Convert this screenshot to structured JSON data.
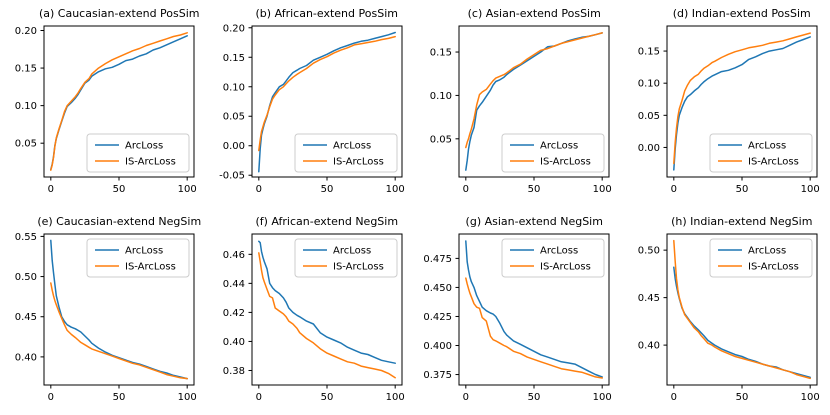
{
  "figure": {
    "description": "2x4 grid of line charts comparing ArcLoss and IS-ArcLoss similarity percentiles",
    "series_colors": {
      "ArcLoss": "#1f77b4",
      "IS-ArcLoss": "#ff7f0e"
    },
    "legend_entries": [
      "ArcLoss",
      "IS-ArcLoss"
    ]
  },
  "common_x": [
    0,
    1,
    2,
    3,
    4,
    6,
    8,
    10,
    12,
    15,
    18,
    20,
    22,
    25,
    28,
    30,
    35,
    40,
    45,
    50,
    55,
    60,
    65,
    70,
    75,
    80,
    85,
    90,
    95,
    100
  ],
  "chart_data": [
    {
      "id": "a",
      "type": "line",
      "title": "(a) Caucasian-extend PosSim",
      "xlim": [
        -5,
        105
      ],
      "ylim": [
        0.005,
        0.206
      ],
      "xticks": [
        "0",
        "50",
        "100"
      ],
      "yticks": [
        "0.05",
        "0.10",
        "0.15",
        "0.20"
      ],
      "legend_pos": "lower-right",
      "grid": false,
      "series": [
        {
          "name": "ArcLoss",
          "color": "#1f77b4",
          "values": [
            0.015,
            0.022,
            0.032,
            0.047,
            0.056,
            0.068,
            0.079,
            0.09,
            0.099,
            0.104,
            0.11,
            0.115,
            0.121,
            0.13,
            0.134,
            0.139,
            0.145,
            0.149,
            0.151,
            0.155,
            0.16,
            0.162,
            0.166,
            0.169,
            0.174,
            0.177,
            0.181,
            0.185,
            0.189,
            0.193
          ]
        },
        {
          "name": "IS-ArcLoss",
          "color": "#ff7f0e",
          "values": [
            0.014,
            0.021,
            0.031,
            0.046,
            0.057,
            0.069,
            0.08,
            0.092,
            0.1,
            0.106,
            0.112,
            0.117,
            0.123,
            0.131,
            0.136,
            0.142,
            0.15,
            0.156,
            0.161,
            0.165,
            0.169,
            0.173,
            0.176,
            0.18,
            0.183,
            0.186,
            0.189,
            0.192,
            0.194,
            0.197
          ]
        }
      ]
    },
    {
      "id": "b",
      "type": "line",
      "title": "(b) African-extend PosSim",
      "xlim": [
        -5,
        105
      ],
      "ylim": [
        -0.053,
        0.203
      ],
      "xticks": [
        "0",
        "50",
        "100"
      ],
      "yticks": [
        "-0.05",
        "0.00",
        "0.05",
        "0.10",
        "0.15",
        "0.20"
      ],
      "legend_pos": "lower-right",
      "grid": false,
      "series": [
        {
          "name": "ArcLoss",
          "color": "#1f77b4",
          "values": [
            -0.044,
            -0.005,
            0.018,
            0.028,
            0.037,
            0.05,
            0.068,
            0.083,
            0.09,
            0.1,
            0.104,
            0.11,
            0.116,
            0.124,
            0.128,
            0.131,
            0.136,
            0.145,
            0.15,
            0.155,
            0.161,
            0.166,
            0.17,
            0.174,
            0.177,
            0.179,
            0.182,
            0.185,
            0.188,
            0.192
          ]
        },
        {
          "name": "IS-ArcLoss",
          "color": "#ff7f0e",
          "values": [
            -0.008,
            0.01,
            0.024,
            0.032,
            0.04,
            0.052,
            0.066,
            0.079,
            0.086,
            0.095,
            0.1,
            0.105,
            0.11,
            0.116,
            0.121,
            0.124,
            0.131,
            0.14,
            0.146,
            0.151,
            0.157,
            0.162,
            0.166,
            0.171,
            0.173,
            0.175,
            0.177,
            0.18,
            0.182,
            0.185
          ]
        }
      ]
    },
    {
      "id": "c",
      "type": "line",
      "title": "(c) Asian-extend PosSim",
      "xlim": [
        -5,
        105
      ],
      "ylim": [
        0.006,
        0.18
      ],
      "xticks": [
        "0",
        "50",
        "100"
      ],
      "yticks": [
        "0.05",
        "0.10",
        "0.15"
      ],
      "legend_pos": "lower-right",
      "grid": false,
      "series": [
        {
          "name": "ArcLoss",
          "color": "#1f77b4",
          "values": [
            0.014,
            0.025,
            0.038,
            0.047,
            0.054,
            0.063,
            0.083,
            0.088,
            0.092,
            0.099,
            0.106,
            0.112,
            0.116,
            0.118,
            0.121,
            0.124,
            0.13,
            0.135,
            0.14,
            0.145,
            0.15,
            0.156,
            0.157,
            0.16,
            0.163,
            0.165,
            0.167,
            0.168,
            0.17,
            0.172
          ]
        },
        {
          "name": "IS-ArcLoss",
          "color": "#ff7f0e",
          "values": [
            0.04,
            0.046,
            0.05,
            0.056,
            0.061,
            0.073,
            0.089,
            0.101,
            0.104,
            0.107,
            0.113,
            0.117,
            0.12,
            0.122,
            0.124,
            0.126,
            0.132,
            0.136,
            0.142,
            0.147,
            0.152,
            0.154,
            0.157,
            0.16,
            0.162,
            0.164,
            0.166,
            0.168,
            0.17,
            0.172
          ]
        }
      ]
    },
    {
      "id": "d",
      "type": "line",
      "title": "(d) Indian-extend PosSim",
      "xlim": [
        -5,
        105
      ],
      "ylim": [
        -0.046,
        0.189
      ],
      "xticks": [
        "0",
        "50",
        "100"
      ],
      "yticks": [
        "0.00",
        "0.05",
        "0.10",
        "0.15"
      ],
      "legend_pos": "lower-right",
      "grid": false,
      "series": [
        {
          "name": "ArcLoss",
          "color": "#1f77b4",
          "values": [
            -0.035,
            -0.002,
            0.02,
            0.038,
            0.05,
            0.062,
            0.072,
            0.079,
            0.082,
            0.088,
            0.093,
            0.098,
            0.102,
            0.107,
            0.111,
            0.113,
            0.118,
            0.12,
            0.124,
            0.129,
            0.137,
            0.141,
            0.146,
            0.15,
            0.152,
            0.154,
            0.159,
            0.164,
            0.168,
            0.172
          ]
        },
        {
          "name": "IS-ArcLoss",
          "color": "#ff7f0e",
          "values": [
            -0.025,
            0.008,
            0.03,
            0.048,
            0.06,
            0.073,
            0.088,
            0.097,
            0.104,
            0.11,
            0.114,
            0.119,
            0.123,
            0.127,
            0.132,
            0.134,
            0.14,
            0.145,
            0.149,
            0.152,
            0.155,
            0.157,
            0.159,
            0.162,
            0.164,
            0.166,
            0.169,
            0.172,
            0.175,
            0.178
          ]
        }
      ]
    },
    {
      "id": "e",
      "type": "line",
      "title": "(e) Caucasian-extend NegSim",
      "xlim": [
        -5,
        105
      ],
      "ylim": [
        0.365,
        0.553
      ],
      "xticks": [
        "0",
        "50",
        "100"
      ],
      "yticks": [
        "0.40",
        "0.45",
        "0.50",
        "0.55"
      ],
      "legend_pos": "upper-right",
      "grid": false,
      "series": [
        {
          "name": "ArcLoss",
          "color": "#1f77b4",
          "values": [
            0.545,
            0.52,
            0.505,
            0.49,
            0.476,
            0.462,
            0.45,
            0.444,
            0.44,
            0.437,
            0.435,
            0.433,
            0.431,
            0.426,
            0.421,
            0.417,
            0.411,
            0.406,
            0.402,
            0.399,
            0.396,
            0.393,
            0.391,
            0.388,
            0.385,
            0.382,
            0.38,
            0.377,
            0.375,
            0.373
          ]
        },
        {
          "name": "IS-ArcLoss",
          "color": "#ff7f0e",
          "values": [
            0.492,
            0.483,
            0.476,
            0.47,
            0.465,
            0.456,
            0.448,
            0.44,
            0.433,
            0.428,
            0.424,
            0.421,
            0.418,
            0.415,
            0.412,
            0.41,
            0.407,
            0.404,
            0.401,
            0.398,
            0.395,
            0.392,
            0.39,
            0.387,
            0.384,
            0.381,
            0.378,
            0.376,
            0.374,
            0.373
          ]
        }
      ]
    },
    {
      "id": "f",
      "type": "line",
      "title": "(f) African-extend NegSim",
      "xlim": [
        -5,
        105
      ],
      "ylim": [
        0.37,
        0.474
      ],
      "xticks": [
        "0",
        "50",
        "100"
      ],
      "yticks": [
        "0.38",
        "0.40",
        "0.42",
        "0.44",
        "0.46"
      ],
      "legend_pos": "upper-right",
      "grid": false,
      "series": [
        {
          "name": "ArcLoss",
          "color": "#1f77b4",
          "values": [
            0.469,
            0.468,
            0.462,
            0.458,
            0.455,
            0.45,
            0.44,
            0.437,
            0.435,
            0.433,
            0.43,
            0.427,
            0.423,
            0.42,
            0.418,
            0.417,
            0.414,
            0.412,
            0.406,
            0.403,
            0.401,
            0.399,
            0.396,
            0.394,
            0.392,
            0.391,
            0.389,
            0.387,
            0.386,
            0.385
          ]
        },
        {
          "name": "IS-ArcLoss",
          "color": "#ff7f0e",
          "values": [
            0.461,
            0.455,
            0.449,
            0.444,
            0.441,
            0.436,
            0.431,
            0.43,
            0.423,
            0.421,
            0.419,
            0.417,
            0.414,
            0.412,
            0.409,
            0.406,
            0.402,
            0.399,
            0.395,
            0.392,
            0.39,
            0.388,
            0.386,
            0.385,
            0.383,
            0.382,
            0.381,
            0.38,
            0.378,
            0.375
          ]
        }
      ]
    },
    {
      "id": "g",
      "type": "line",
      "title": "(g) Asian-extend NegSim",
      "xlim": [
        -5,
        105
      ],
      "ylim": [
        0.366,
        0.496
      ],
      "xticks": [
        "0",
        "50",
        "100"
      ],
      "yticks": [
        "0.375",
        "0.400",
        "0.425",
        "0.450",
        "0.475"
      ],
      "legend_pos": "upper-right",
      "grid": false,
      "series": [
        {
          "name": "ArcLoss",
          "color": "#1f77b4",
          "values": [
            0.49,
            0.472,
            0.465,
            0.459,
            0.455,
            0.45,
            0.443,
            0.438,
            0.433,
            0.43,
            0.428,
            0.427,
            0.425,
            0.419,
            0.412,
            0.409,
            0.404,
            0.401,
            0.398,
            0.395,
            0.392,
            0.39,
            0.388,
            0.386,
            0.385,
            0.384,
            0.381,
            0.378,
            0.375,
            0.373
          ]
        },
        {
          "name": "IS-ArcLoss",
          "color": "#ff7f0e",
          "values": [
            0.458,
            0.453,
            0.449,
            0.445,
            0.442,
            0.436,
            0.433,
            0.432,
            0.424,
            0.421,
            0.408,
            0.405,
            0.404,
            0.402,
            0.4,
            0.399,
            0.395,
            0.393,
            0.39,
            0.388,
            0.386,
            0.384,
            0.382,
            0.38,
            0.379,
            0.378,
            0.377,
            0.375,
            0.373,
            0.372
          ]
        }
      ]
    },
    {
      "id": "h",
      "type": "line",
      "title": "(h) Indian-extend NegSim",
      "xlim": [
        -5,
        105
      ],
      "ylim": [
        0.358,
        0.517
      ],
      "xticks": [
        "0",
        "50",
        "100"
      ],
      "yticks": [
        "0.40",
        "0.45",
        "0.50"
      ],
      "legend_pos": "upper-right",
      "grid": false,
      "series": [
        {
          "name": "ArcLoss",
          "color": "#1f77b4",
          "values": [
            0.482,
            0.47,
            0.462,
            0.455,
            0.449,
            0.439,
            0.433,
            0.429,
            0.425,
            0.42,
            0.416,
            0.413,
            0.41,
            0.405,
            0.402,
            0.4,
            0.396,
            0.393,
            0.39,
            0.388,
            0.385,
            0.383,
            0.38,
            0.378,
            0.377,
            0.374,
            0.372,
            0.37,
            0.368,
            0.366
          ]
        },
        {
          "name": "IS-ArcLoss",
          "color": "#ff7f0e",
          "values": [
            0.51,
            0.488,
            0.47,
            0.458,
            0.45,
            0.44,
            0.432,
            0.428,
            0.424,
            0.418,
            0.414,
            0.41,
            0.407,
            0.402,
            0.4,
            0.398,
            0.394,
            0.391,
            0.388,
            0.386,
            0.384,
            0.382,
            0.38,
            0.378,
            0.376,
            0.374,
            0.372,
            0.369,
            0.367,
            0.365
          ]
        }
      ]
    }
  ]
}
